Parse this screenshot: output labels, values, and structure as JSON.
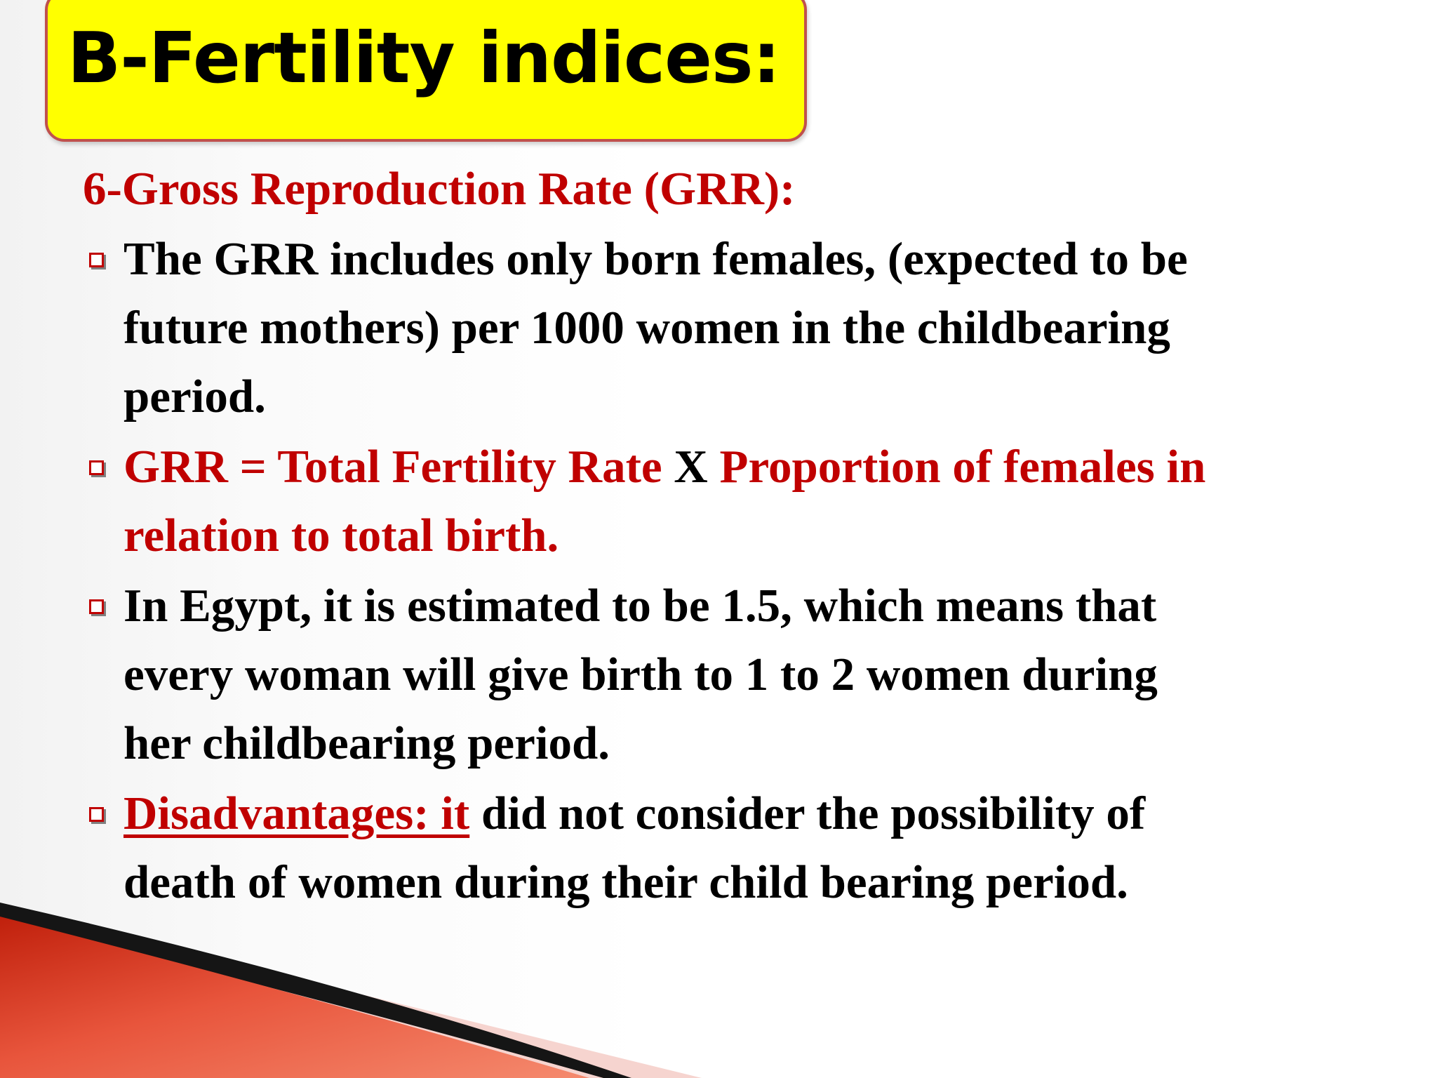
{
  "title": "B-Fertility indices:",
  "subheading": "6-Gross Reproduction Rate (GRR):",
  "bullets": [
    {
      "lines": [
        "The GRR includes only born females, (expected to be",
        "future mothers) per 1000 women in the childbearing",
        "period."
      ]
    },
    {
      "part1": "GRR = Total Fertility Rate",
      "part2": " X ",
      "part3": "Proportion of females in",
      "line2": "relation to total birth."
    },
    {
      "lines": [
        "In Egypt, it is estimated to be 1.5, which means that",
        "every woman will give birth to 1 to 2 women during",
        "her childbearing period."
      ]
    },
    {
      "label": "Disadvantages: it",
      "rest": " did not consider the possibility of",
      "line2": "death of women during their child bearing period."
    }
  ],
  "colors": {
    "title_fill": "#ffff00",
    "title_border": "#c0504d",
    "accent_red": "#c00000",
    "text": "#000000"
  },
  "icons": {
    "bullet": "square-bullet-icon"
  }
}
